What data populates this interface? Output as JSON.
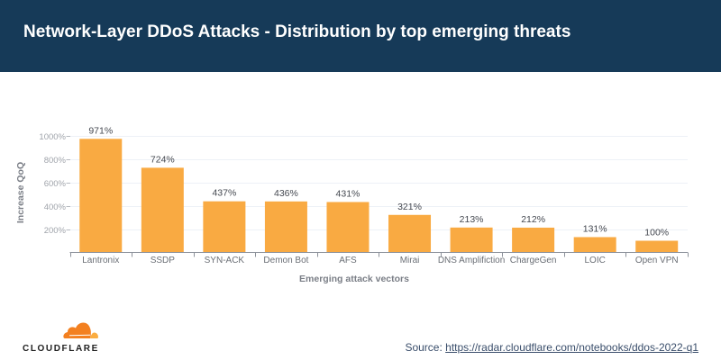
{
  "header": {
    "title": "Network-Layer DDoS Attacks - Distribution by top emerging threats"
  },
  "chart_data": {
    "type": "bar",
    "title": "Network-Layer DDoS Attacks - Distribution by top emerging threats",
    "categories": [
      "Lantronix",
      "SSDP",
      "SYN-ACK",
      "Demon Bot",
      "AFS",
      "Mirai",
      "DNS Amplifiction",
      "ChargeGen",
      "LOIC",
      "Open VPN"
    ],
    "values": [
      971,
      724,
      437,
      436,
      431,
      321,
      213,
      212,
      131,
      100
    ],
    "data_labels": [
      "971%",
      "724%",
      "437%",
      "436%",
      "431%",
      "321%",
      "213%",
      "212%",
      "131%",
      "100%"
    ],
    "xlabel": "Emerging attack vectors",
    "ylabel": "Increase QoQ",
    "ylim": [
      0,
      1000
    ],
    "yticks": [
      200,
      400,
      600,
      800,
      1000
    ],
    "ytick_labels": [
      "200%",
      "400%",
      "600%",
      "800%",
      "1000%"
    ],
    "grid": true,
    "legend": "none",
    "colors": {
      "bar": "#f9aa42"
    }
  },
  "footer": {
    "logo_text": "CLOUDFLARE",
    "source_label": "Source: ",
    "source_link": "https://radar.cloudflare.com/notebooks/ddos-2022-q1"
  },
  "colors": {
    "header_bg": "#163a58",
    "logo_orange": "#f38020",
    "logo_light_orange": "#fbad41"
  }
}
